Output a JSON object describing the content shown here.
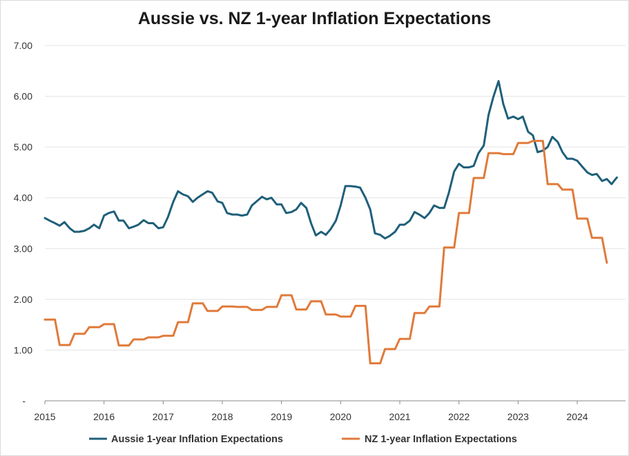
{
  "chart_data": {
    "type": "line",
    "title": "Aussie vs. NZ 1-year Inflation Expectations",
    "xlabel": "",
    "ylabel": "",
    "ylim": [
      0,
      7
    ],
    "xlim": [
      2015.0,
      2024.7
    ],
    "yticks": [
      "-",
      "1.00",
      "2.00",
      "3.00",
      "4.00",
      "5.00",
      "6.00",
      "7.00"
    ],
    "xticks": [
      "2015",
      "2016",
      "2017",
      "2018",
      "2019",
      "2020",
      "2021",
      "2022",
      "2023",
      "2024"
    ],
    "grid": "horizontal",
    "legend_position": "bottom",
    "series": [
      {
        "name": "Aussie 1-year Inflation Expectations",
        "color": "#1f5f7a",
        "points": [
          [
            2015.0,
            3.6
          ],
          [
            2015.08,
            3.55
          ],
          [
            2015.17,
            3.5
          ],
          [
            2015.25,
            3.45
          ],
          [
            2015.33,
            3.52
          ],
          [
            2015.42,
            3.4
          ],
          [
            2015.5,
            3.33
          ],
          [
            2015.58,
            3.33
          ],
          [
            2015.67,
            3.35
          ],
          [
            2015.75,
            3.4
          ],
          [
            2015.83,
            3.47
          ],
          [
            2015.92,
            3.4
          ],
          [
            2016.0,
            3.65
          ],
          [
            2016.08,
            3.7
          ],
          [
            2016.17,
            3.73
          ],
          [
            2016.25,
            3.55
          ],
          [
            2016.33,
            3.55
          ],
          [
            2016.42,
            3.4
          ],
          [
            2016.5,
            3.43
          ],
          [
            2016.58,
            3.47
          ],
          [
            2016.67,
            3.56
          ],
          [
            2016.75,
            3.5
          ],
          [
            2016.83,
            3.5
          ],
          [
            2016.92,
            3.4
          ],
          [
            2017.0,
            3.42
          ],
          [
            2017.08,
            3.62
          ],
          [
            2017.17,
            3.92
          ],
          [
            2017.25,
            4.13
          ],
          [
            2017.33,
            4.07
          ],
          [
            2017.42,
            4.03
          ],
          [
            2017.5,
            3.92
          ],
          [
            2017.58,
            4.0
          ],
          [
            2017.67,
            4.07
          ],
          [
            2017.75,
            4.13
          ],
          [
            2017.83,
            4.1
          ],
          [
            2017.92,
            3.93
          ],
          [
            2018.0,
            3.9
          ],
          [
            2018.08,
            3.7
          ],
          [
            2018.17,
            3.67
          ],
          [
            2018.25,
            3.67
          ],
          [
            2018.33,
            3.65
          ],
          [
            2018.42,
            3.67
          ],
          [
            2018.5,
            3.85
          ],
          [
            2018.58,
            3.93
          ],
          [
            2018.67,
            4.02
          ],
          [
            2018.75,
            3.97
          ],
          [
            2018.83,
            4.0
          ],
          [
            2018.92,
            3.87
          ],
          [
            2019.0,
            3.87
          ],
          [
            2019.08,
            3.7
          ],
          [
            2019.17,
            3.72
          ],
          [
            2019.25,
            3.77
          ],
          [
            2019.33,
            3.9
          ],
          [
            2019.42,
            3.8
          ],
          [
            2019.5,
            3.5
          ],
          [
            2019.58,
            3.26
          ],
          [
            2019.67,
            3.33
          ],
          [
            2019.75,
            3.27
          ],
          [
            2019.83,
            3.38
          ],
          [
            2019.92,
            3.55
          ],
          [
            2020.0,
            3.85
          ],
          [
            2020.08,
            4.23
          ],
          [
            2020.17,
            4.23
          ],
          [
            2020.25,
            4.22
          ],
          [
            2020.33,
            4.2
          ],
          [
            2020.42,
            4.0
          ],
          [
            2020.5,
            3.77
          ],
          [
            2020.58,
            3.3
          ],
          [
            2020.67,
            3.27
          ],
          [
            2020.75,
            3.2
          ],
          [
            2020.83,
            3.25
          ],
          [
            2020.92,
            3.33
          ],
          [
            2021.0,
            3.47
          ],
          [
            2021.08,
            3.47
          ],
          [
            2021.17,
            3.55
          ],
          [
            2021.25,
            3.72
          ],
          [
            2021.33,
            3.67
          ],
          [
            2021.42,
            3.6
          ],
          [
            2021.5,
            3.7
          ],
          [
            2021.58,
            3.85
          ],
          [
            2021.67,
            3.8
          ],
          [
            2021.75,
            3.8
          ],
          [
            2021.83,
            4.1
          ],
          [
            2021.92,
            4.52
          ],
          [
            2022.0,
            4.67
          ],
          [
            2022.08,
            4.6
          ],
          [
            2022.17,
            4.6
          ],
          [
            2022.25,
            4.63
          ],
          [
            2022.33,
            4.88
          ],
          [
            2022.42,
            5.03
          ],
          [
            2022.5,
            5.63
          ],
          [
            2022.58,
            5.98
          ],
          [
            2022.67,
            6.3
          ],
          [
            2022.75,
            5.85
          ],
          [
            2022.83,
            5.56
          ],
          [
            2022.92,
            5.6
          ],
          [
            2023.0,
            5.55
          ],
          [
            2023.08,
            5.6
          ],
          [
            2023.17,
            5.3
          ],
          [
            2023.25,
            5.23
          ],
          [
            2023.33,
            4.9
          ],
          [
            2023.42,
            4.93
          ],
          [
            2023.5,
            5.0
          ],
          [
            2023.58,
            5.2
          ],
          [
            2023.67,
            5.1
          ],
          [
            2023.75,
            4.9
          ],
          [
            2023.83,
            4.77
          ],
          [
            2023.92,
            4.77
          ],
          [
            2024.0,
            4.73
          ],
          [
            2024.08,
            4.62
          ],
          [
            2024.17,
            4.5
          ],
          [
            2024.25,
            4.45
          ],
          [
            2024.33,
            4.47
          ],
          [
            2024.42,
            4.33
          ],
          [
            2024.5,
            4.37
          ],
          [
            2024.58,
            4.27
          ],
          [
            2024.67,
            4.4
          ]
        ]
      },
      {
        "name": "NZ 1-year Inflation Expectations",
        "color": "#e07a3a",
        "points": [
          [
            2015.0,
            1.6
          ],
          [
            2015.17,
            1.6
          ],
          [
            2015.25,
            1.1
          ],
          [
            2015.42,
            1.1
          ],
          [
            2015.5,
            1.32
          ],
          [
            2015.67,
            1.32
          ],
          [
            2015.75,
            1.45
          ],
          [
            2015.92,
            1.45
          ],
          [
            2016.0,
            1.51
          ],
          [
            2016.17,
            1.51
          ],
          [
            2016.25,
            1.09
          ],
          [
            2016.42,
            1.09
          ],
          [
            2016.5,
            1.21
          ],
          [
            2016.67,
            1.21
          ],
          [
            2016.75,
            1.25
          ],
          [
            2016.92,
            1.25
          ],
          [
            2017.0,
            1.28
          ],
          [
            2017.17,
            1.28
          ],
          [
            2017.25,
            1.55
          ],
          [
            2017.42,
            1.55
          ],
          [
            2017.5,
            1.92
          ],
          [
            2017.67,
            1.92
          ],
          [
            2017.75,
            1.77
          ],
          [
            2017.92,
            1.77
          ],
          [
            2018.0,
            1.86
          ],
          [
            2018.17,
            1.86
          ],
          [
            2018.25,
            1.85
          ],
          [
            2018.42,
            1.85
          ],
          [
            2018.5,
            1.79
          ],
          [
            2018.67,
            1.79
          ],
          [
            2018.75,
            1.85
          ],
          [
            2018.92,
            1.85
          ],
          [
            2019.0,
            2.08
          ],
          [
            2019.17,
            2.08
          ],
          [
            2019.25,
            1.8
          ],
          [
            2019.42,
            1.8
          ],
          [
            2019.5,
            1.96
          ],
          [
            2019.67,
            1.96
          ],
          [
            2019.75,
            1.7
          ],
          [
            2019.92,
            1.7
          ],
          [
            2020.0,
            1.66
          ],
          [
            2020.17,
            1.66
          ],
          [
            2020.25,
            1.87
          ],
          [
            2020.42,
            1.87
          ],
          [
            2020.5,
            0.74
          ],
          [
            2020.67,
            0.74
          ],
          [
            2020.75,
            1.02
          ],
          [
            2020.92,
            1.02
          ],
          [
            2021.0,
            1.22
          ],
          [
            2021.17,
            1.22
          ],
          [
            2021.25,
            1.73
          ],
          [
            2021.42,
            1.73
          ],
          [
            2021.5,
            1.86
          ],
          [
            2021.67,
            1.86
          ],
          [
            2021.75,
            3.02
          ],
          [
            2021.92,
            3.02
          ],
          [
            2022.0,
            3.7
          ],
          [
            2022.17,
            3.7
          ],
          [
            2022.25,
            4.39
          ],
          [
            2022.42,
            4.39
          ],
          [
            2022.5,
            4.88
          ],
          [
            2022.67,
            4.88
          ],
          [
            2022.75,
            4.86
          ],
          [
            2022.92,
            4.86
          ],
          [
            2023.0,
            5.08
          ],
          [
            2023.17,
            5.08
          ],
          [
            2023.25,
            5.12
          ],
          [
            2023.42,
            5.12
          ],
          [
            2023.5,
            4.27
          ],
          [
            2023.67,
            4.27
          ],
          [
            2023.75,
            4.16
          ],
          [
            2023.92,
            4.16
          ],
          [
            2024.0,
            3.59
          ],
          [
            2024.17,
            3.59
          ],
          [
            2024.25,
            3.21
          ],
          [
            2024.42,
            3.21
          ],
          [
            2024.5,
            2.72
          ]
        ]
      }
    ]
  }
}
